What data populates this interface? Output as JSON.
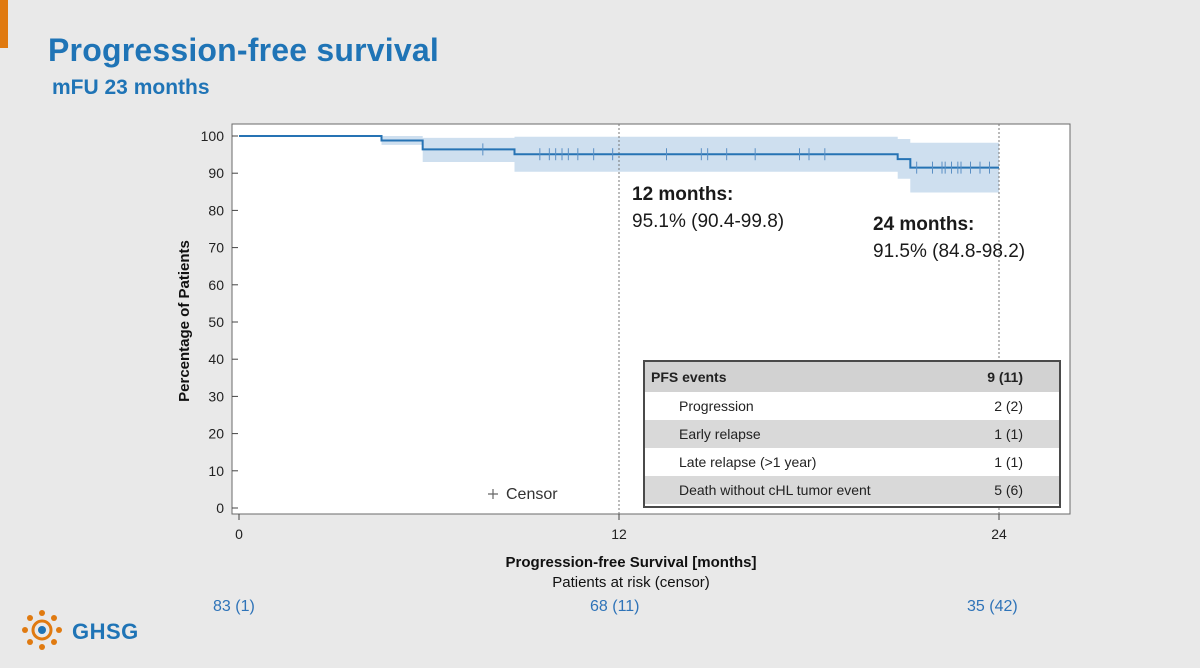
{
  "slide": {
    "title": "Progression-free survival",
    "subtitle": "mFU 23 months",
    "logo_text": "GHSG"
  },
  "colors": {
    "accent": "#1f74b6",
    "curve": "#2673b4",
    "ci_band": "#c6d9ec",
    "orange": "#e07a10"
  },
  "chart_data": {
    "type": "line",
    "title": "",
    "xlabel": "Progression-free Survival [months]",
    "ylabel": "Percentage of Patients",
    "xlim": [
      0,
      26
    ],
    "ylim": [
      0,
      100
    ],
    "x_ticks": [
      0,
      12,
      24
    ],
    "y_ticks": [
      0,
      10,
      20,
      30,
      40,
      50,
      60,
      70,
      80,
      90,
      100
    ],
    "grid": false,
    "reference_lines_x": [
      12,
      24
    ],
    "series": [
      {
        "steps": [
          [
            0,
            100
          ],
          [
            4.5,
            98.8
          ],
          [
            5.8,
            96.4
          ],
          [
            8.7,
            95.1
          ],
          [
            20.8,
            93.8
          ],
          [
            21.2,
            91.5
          ],
          [
            24,
            91.5
          ]
        ],
        "ci_steps": [
          [
            0,
            100,
            100
          ],
          [
            4.5,
            97.6,
            100
          ],
          [
            5.8,
            93.0,
            99.5
          ],
          [
            8.7,
            90.4,
            99.8
          ],
          [
            20.8,
            88.5,
            99.2
          ],
          [
            21.2,
            84.8,
            98.2
          ],
          [
            24,
            84.8,
            98.2
          ]
        ],
        "censor_times": [
          7.7,
          9.5,
          9.8,
          10.0,
          10.2,
          10.4,
          10.7,
          11.2,
          11.8,
          13.5,
          14.6,
          14.8,
          15.4,
          16.3,
          17.7,
          18.0,
          18.5,
          21.4,
          21.9,
          22.2,
          22.3,
          22.5,
          22.7,
          22.8,
          23.1,
          23.4,
          23.7
        ]
      }
    ],
    "annotations": [
      {
        "heading": "12 months:",
        "text": "95.1% (90.4-99.8)"
      },
      {
        "heading": "24 months:",
        "text": "91.5% (84.8-98.2)"
      }
    ],
    "legend": {
      "label": "Censor",
      "position": "bottom-center"
    },
    "risk_table": {
      "title": "Patients at risk (censor)",
      "values": [
        "83 (1)",
        "68 (11)",
        "35 (42)"
      ]
    }
  },
  "events_table": {
    "header": {
      "label": "PFS events",
      "value": "9 (11)"
    },
    "rows": [
      {
        "label": "Progression",
        "value": "2 (2)"
      },
      {
        "label": "Early relapse",
        "value": "1 (1)"
      },
      {
        "label": "Late relapse (>1 year)",
        "value": "1 (1)"
      },
      {
        "label": "Death without cHL tumor event",
        "value": "5 (6)"
      }
    ]
  }
}
